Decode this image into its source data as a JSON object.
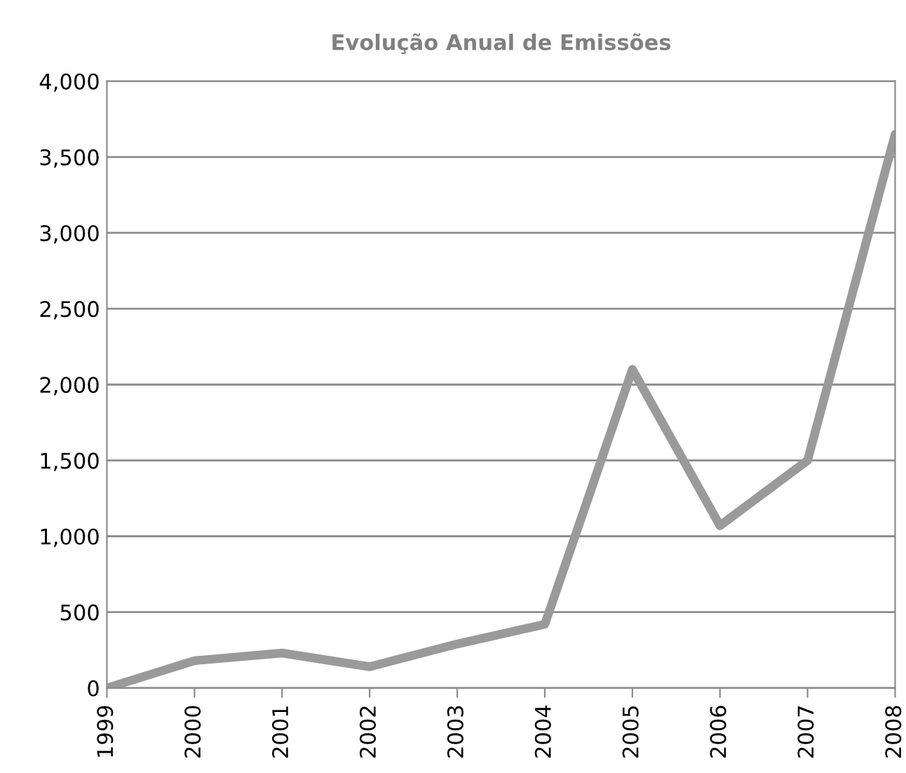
{
  "chart_data": {
    "type": "line",
    "title": "Evolução Anual de Emissões",
    "categories": [
      "1999",
      "2000",
      "2001",
      "2002",
      "2003",
      "2004",
      "2005",
      "2006",
      "2007",
      "2008"
    ],
    "series": [
      {
        "color": "#9a9a9a",
        "values": [
          0,
          180,
          230,
          140,
          290,
          420,
          2100,
          1070,
          1500,
          3650
        ]
      }
    ],
    "ylim": [
      0,
      4000
    ],
    "yticks": [
      {
        "value": 0,
        "label": "0"
      },
      {
        "value": 500,
        "label": "500"
      },
      {
        "value": 1000,
        "label": "1,000"
      },
      {
        "value": 1500,
        "label": "1,500"
      },
      {
        "value": 2000,
        "label": "2,000"
      },
      {
        "value": 2500,
        "label": "2,500"
      },
      {
        "value": 3000,
        "label": "3,000"
      },
      {
        "value": 3500,
        "label": "3,500"
      },
      {
        "value": 4000,
        "label": "4,000"
      }
    ],
    "grid": "y",
    "marker": "none",
    "line_style": "solid"
  }
}
